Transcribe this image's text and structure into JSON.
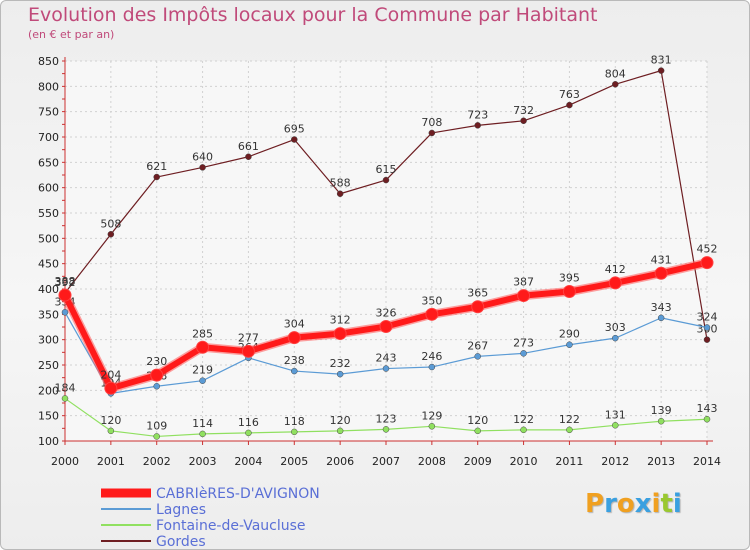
{
  "chart_data": {
    "type": "line",
    "title": "Evolution des Impôts locaux pour la Commune par Habitant",
    "subtitle": "(en € et par an)",
    "xlabel": "",
    "ylabel": "",
    "ylim": [
      100,
      850
    ],
    "yticks": [
      100,
      150,
      200,
      250,
      300,
      350,
      400,
      450,
      500,
      550,
      600,
      650,
      700,
      750,
      800,
      850
    ],
    "x": [
      "2000",
      "2001",
      "2002",
      "2003",
      "2004",
      "2005",
      "2006",
      "2007",
      "2008",
      "2009",
      "2010",
      "2011",
      "2012",
      "2013",
      "2014"
    ],
    "grid": true,
    "legend_position": "bottom-left",
    "series": [
      {
        "name": "Gordes",
        "color": "#6e1e22",
        "style": "thin",
        "values": [
          392,
          508,
          621,
          640,
          661,
          695,
          588,
          615,
          708,
          723,
          732,
          763,
          804,
          831,
          300
        ],
        "labels": [
          "392",
          "508",
          "621",
          "640",
          "661",
          "695",
          "588",
          "615",
          "708",
          "723",
          "732",
          "763",
          "804",
          "831",
          "300"
        ]
      },
      {
        "name": "Lagnes",
        "color": "#5b9bd5",
        "style": "thin",
        "values": [
          354,
          194,
          208,
          219,
          264,
          238,
          232,
          243,
          246,
          267,
          273,
          290,
          303,
          343,
          324
        ],
        "labels": [
          "354",
          "194",
          "208",
          "219",
          "264",
          "238",
          "232",
          "243",
          "246",
          "267",
          "273",
          "290",
          "303",
          "343",
          "324"
        ]
      },
      {
        "name": "Fontaine-de-Vaucluse",
        "color": "#90e060",
        "style": "thin",
        "values": [
          184,
          120,
          109,
          114,
          116,
          118,
          120,
          123,
          129,
          120,
          122,
          122,
          131,
          139,
          143
        ],
        "labels": [
          "184",
          "120",
          "109",
          "114",
          "116",
          "118",
          "120",
          "123",
          "129",
          "120",
          "122",
          "122",
          "131",
          "139",
          "143"
        ]
      },
      {
        "name": "CABRIèRES-D'AVIGNON",
        "color": "#ff1a1a",
        "style": "thick",
        "values": [
          388,
          204,
          230,
          285,
          277,
          304,
          312,
          326,
          350,
          365,
          387,
          395,
          412,
          431,
          452
        ],
        "labels": [
          "388",
          "204",
          "230",
          "285",
          "277",
          "304",
          "312",
          "326",
          "350",
          "365",
          "387",
          "395",
          "412",
          "431",
          "452"
        ]
      }
    ],
    "legend_order": [
      3,
      1,
      2,
      0
    ]
  },
  "branding": {
    "logo_letters": [
      "P",
      "r",
      "o",
      "x",
      "i",
      "t",
      "i"
    ],
    "logo_colors": [
      "#f0a020",
      "#3aa0e0",
      "#f0a020",
      "#3aa0e0",
      "#f0a020",
      "#9ac830",
      "#3aa0e0"
    ]
  }
}
